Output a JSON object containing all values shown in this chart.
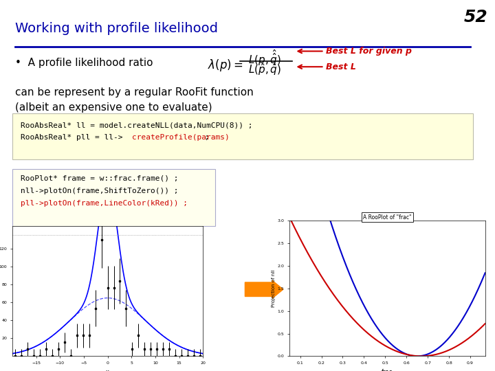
{
  "slide_number": "52",
  "title": "Working with profile likelihood",
  "title_color": "#0000AA",
  "title_fontsize": 14,
  "bg_color": "#FFFFFF",
  "bullet_text": "A profile likelihood ratio",
  "bullet_color": "#000000",
  "bullet_fontsize": 11,
  "annotation1": "Best L for given p",
  "annotation2": "Best L",
  "annotation_color": "#CC0000",
  "annotation_fontsize": 9,
  "body_text_line1": "can be represent by a regular RooFit function",
  "body_text_line2": "(albeit an expensive one to evaluate)",
  "body_text_color": "#000000",
  "body_fontsize": 11,
  "code1_line1_black": "RooAbsReal* ll = model.createNLL(data,NumCPU(8)) ;",
  "code1_line2_black": "RooAbsReal* pll = ll->",
  "code1_line2_red": "createProfile(params)",
  "code1_line2_end": " ;",
  "code_fontsize": 8,
  "code_box1_bg": "#FFFFDD",
  "code_box2_bg": "#FFFFEE",
  "code2_line1": "RooPlot* frame = w::frac.frame() ;",
  "code2_line2": "nll->plotOn(frame,ShiftToZero()) ;",
  "code2_line3": "pll->plotOn(frame,LineColor(kRed)) ;",
  "arrow_color": "#FF8800",
  "nll_color": "#0000CC",
  "pll_color": "#CC0000",
  "right_plot_title": "A RooPlot of \"frac\"",
  "right_plot_ylabel": "Projection of nll",
  "right_plot_xlabel": "frac"
}
